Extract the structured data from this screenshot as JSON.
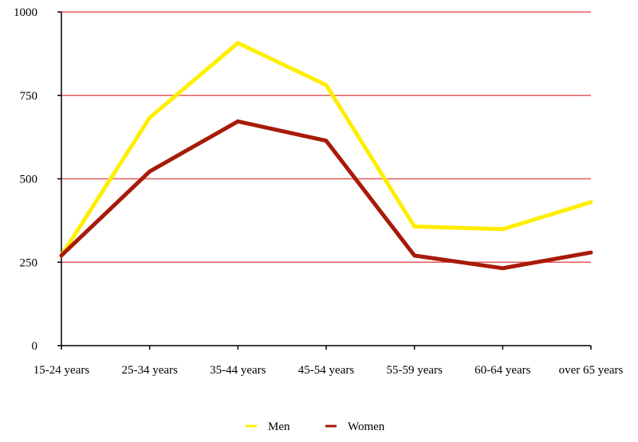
{
  "chart_data": {
    "type": "line",
    "categories": [
      "15-24 years",
      "25-34 years",
      "35-44 years",
      "45-54 years",
      "55-59 years",
      "60-64 years",
      "over 65 years"
    ],
    "series": [
      {
        "name": "Men",
        "color": "#ffee00",
        "values": [
          270,
          683,
          907,
          781,
          357,
          349,
          430
        ]
      },
      {
        "name": "Women",
        "color": "#a81a08",
        "values": [
          270,
          522,
          672,
          614,
          270,
          232,
          279
        ]
      }
    ],
    "y_ticks": [
      0,
      250,
      500,
      750,
      1000
    ],
    "y_tick_labels": [
      "0",
      "250",
      "500",
      "750",
      "1000"
    ],
    "ylim": [
      0,
      1000
    ],
    "grid": true,
    "grid_color": "#e35a5a",
    "legend_position": "bottom-center"
  }
}
